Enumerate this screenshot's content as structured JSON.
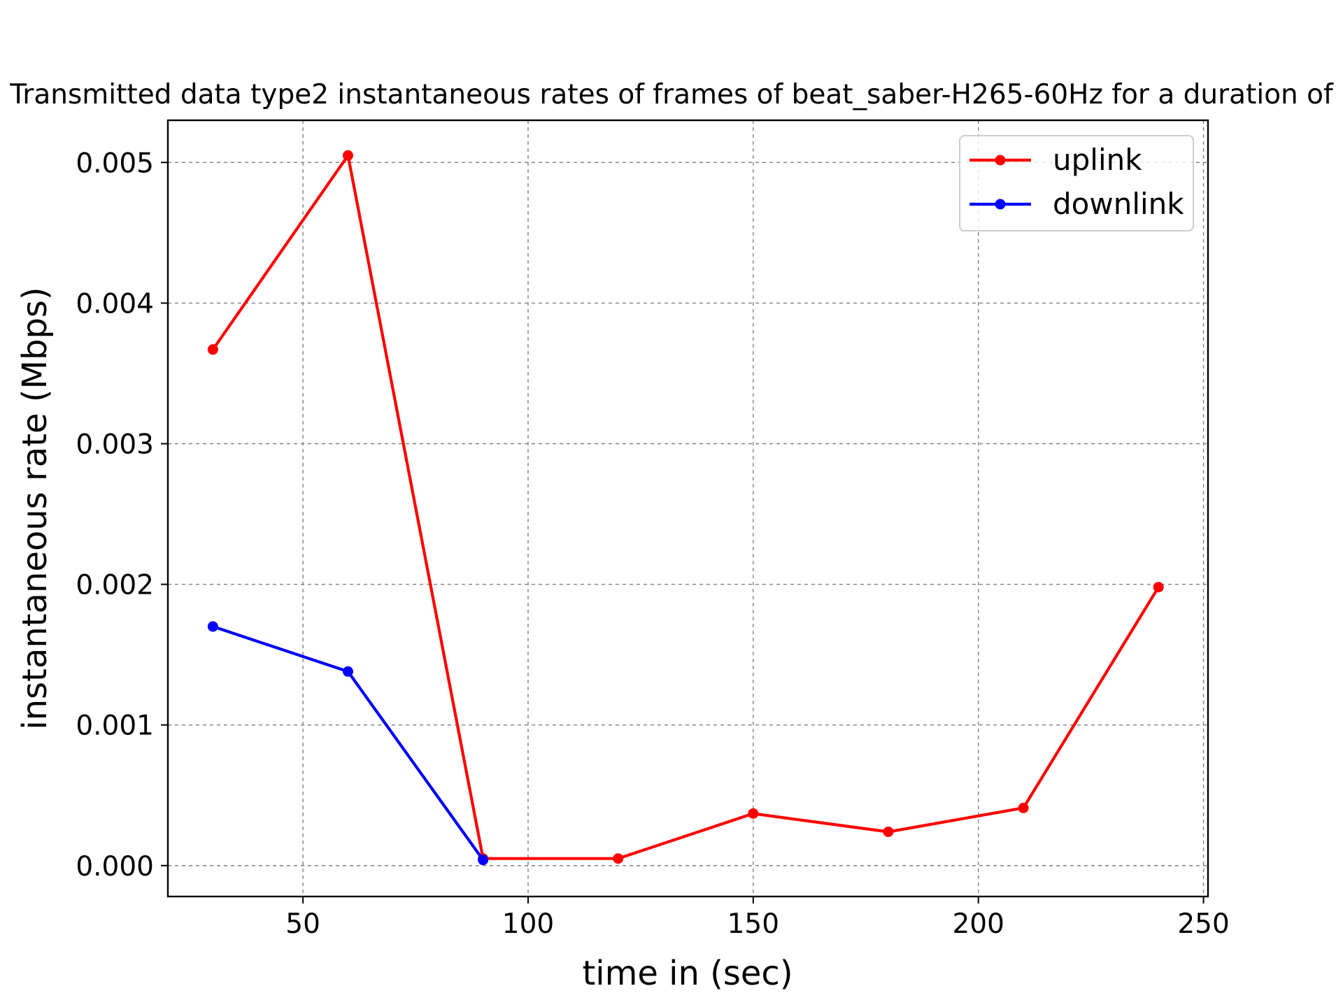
{
  "chart_data": {
    "type": "line",
    "title": "Transmitted data type2 instantaneous rates of frames of beat_saber-H265-60Hz for a duration of",
    "xlabel": "time in (sec)",
    "ylabel": "instantaneous rate (Mbps)",
    "xlim": [
      20,
      251
    ],
    "ylim": [
      -0.00022,
      0.0053
    ],
    "x_ticks": [
      50,
      100,
      150,
      200,
      250
    ],
    "x_tick_labels": [
      "50",
      "100",
      "150",
      "200",
      "250"
    ],
    "y_ticks": [
      0.0,
      0.001,
      0.002,
      0.003,
      0.004,
      0.005
    ],
    "y_tick_labels": [
      "0.000",
      "0.001",
      "0.002",
      "0.003",
      "0.004",
      "0.005"
    ],
    "grid": true,
    "legend_position": "upper right",
    "series": [
      {
        "name": "uplink",
        "color": "#ff0000",
        "x": [
          30,
          60,
          90,
          120,
          150,
          180,
          210,
          240
        ],
        "y": [
          0.00367,
          0.00505,
          5e-05,
          5e-05,
          0.00037,
          0.00024,
          0.00041,
          0.00198
        ]
      },
      {
        "name": "downlink",
        "color": "#0000ff",
        "x": [
          30,
          60,
          90
        ],
        "y": [
          0.0017,
          0.00138,
          4e-05
        ]
      }
    ]
  }
}
